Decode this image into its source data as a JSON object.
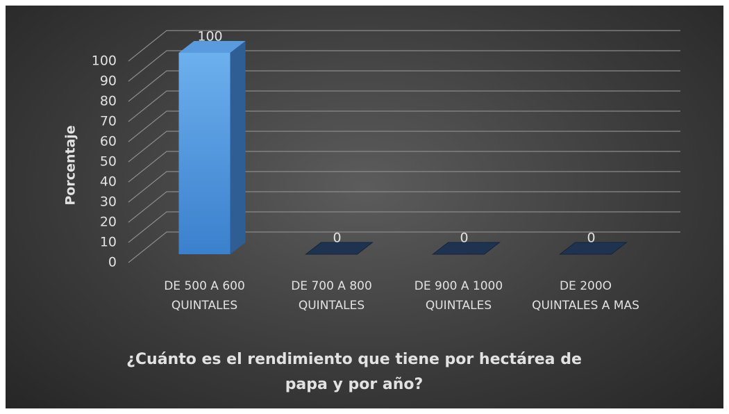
{
  "chart_data": {
    "type": "bar3d",
    "x_label": "¿Cuánto es el rendimiento que tiene por hectárea de papa y por año?",
    "y_label": "Porcentaje",
    "categories": [
      "DE 500 A 600 QUINTALES",
      "DE 700 A 800 QUINTALES",
      "DE 900 A 1000 QUINTALES",
      "DE 200O QUINTALES A MAS"
    ],
    "values": [
      100,
      0,
      0,
      0
    ],
    "color": "#4a90dc",
    "ylim": [
      0,
      100
    ],
    "yticks": [
      0,
      10,
      20,
      30,
      40,
      50,
      60,
      70,
      80,
      90,
      100
    ],
    "grid": true
  }
}
